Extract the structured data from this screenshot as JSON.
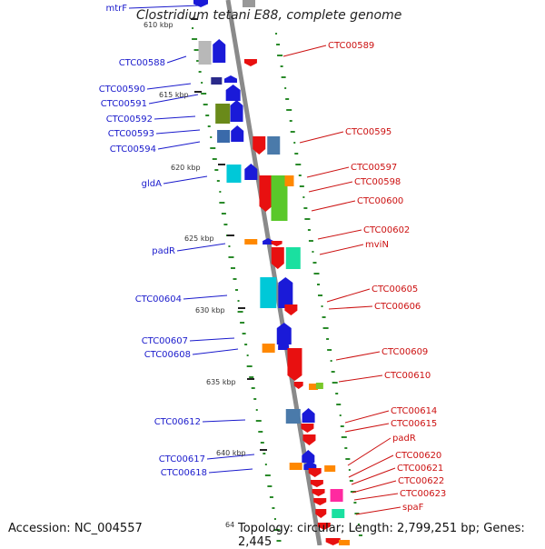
{
  "title": "Clostridium tetani E88, complete genome",
  "footer": {
    "accession": "Accession: NC_004557",
    "topology": "Topology: circular; Length: 2,799,251 bp; Genes: 2,445"
  },
  "colors": {
    "left_labels": "#1a1acc",
    "right_labels": "#cc1111",
    "backbone": "#8a8a8a",
    "gc_ticks": "#2a8a2a"
  },
  "kbp_ticks": [
    "610 kbp",
    "615 kbp",
    "620 kbp",
    "625 kbp",
    "630 kbp",
    "635 kbp",
    "640 kbp",
    "64"
  ],
  "left_genes": [
    "mtrF",
    "CTC00588",
    "CTC00590",
    "CTC00591",
    "CTC00592",
    "CTC00593",
    "CTC00594",
    "gldA",
    "padR",
    "CTC00604",
    "CTC00607",
    "CTC00608",
    "CTC00612",
    "CTC00617",
    "CTC00618"
  ],
  "right_genes": [
    "CTC00589",
    "CTC00595",
    "CTC00597",
    "CTC00598",
    "CTC00600",
    "CTC00602",
    "mviN",
    "CTC00605",
    "CTC00606",
    "CTC00609",
    "CTC00610",
    "CTC00614",
    "CTC00615",
    "padR",
    "CTC00620",
    "CTC00621",
    "CTC00622",
    "CTC00623",
    "spaF"
  ]
}
